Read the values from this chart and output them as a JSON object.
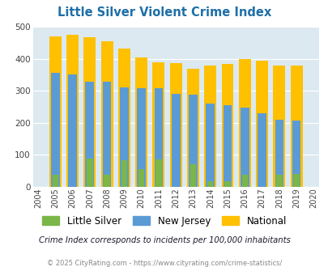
{
  "title": "Little Silver Violent Crime Index",
  "years": [
    2004,
    2005,
    2006,
    2007,
    2008,
    2009,
    2010,
    2011,
    2012,
    2013,
    2014,
    2015,
    2016,
    2017,
    2018,
    2019,
    2020
  ],
  "little_silver": [
    0,
    37,
    0,
    88,
    37,
    83,
    55,
    85,
    0,
    70,
    18,
    18,
    38,
    0,
    37,
    40,
    0
  ],
  "new_jersey": [
    0,
    355,
    350,
    328,
    328,
    311,
    308,
    308,
    290,
    288,
    260,
    255,
    247,
    230,
    210,
    207,
    0
  ],
  "national": [
    0,
    469,
    474,
    467,
    455,
    432,
    405,
    388,
    387,
    368,
    378,
    384,
    398,
    394,
    380,
    379,
    0
  ],
  "ls_color": "#7ab648",
  "nj_color": "#5b9bd5",
  "nat_color": "#ffc000",
  "bg_color": "#dce9f0",
  "ylim": [
    0,
    500
  ],
  "yticks": [
    0,
    100,
    200,
    300,
    400,
    500
  ],
  "subtitle": "Crime Index corresponds to incidents per 100,000 inhabitants",
  "footer": "© 2025 CityRating.com - https://www.cityrating.com/crime-statistics/",
  "title_color": "#1e6fa8",
  "subtitle_color": "#1a1a2e",
  "footer_color": "#888888"
}
